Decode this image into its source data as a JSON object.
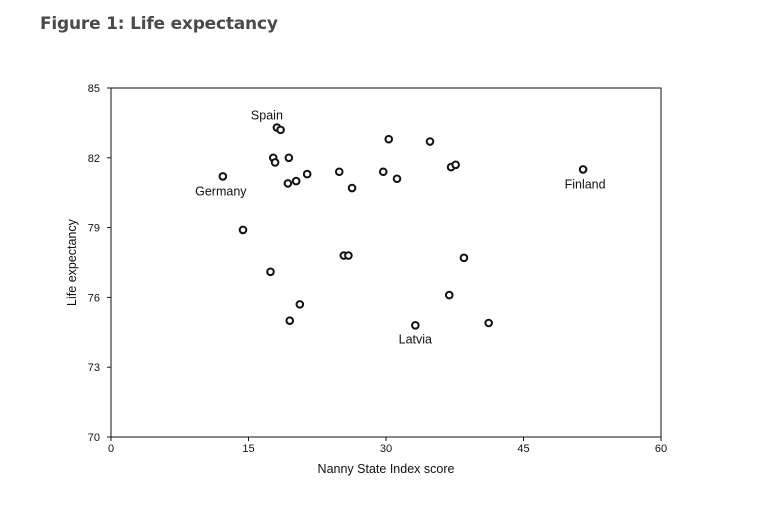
{
  "figure_title": "Figure 1: Life expectancy",
  "chart_data": {
    "type": "scatter",
    "title": "Figure 1: Life expectancy",
    "xlabel": "Nanny State Index score",
    "ylabel": "Life expectancy",
    "xlim": [
      0,
      60
    ],
    "ylim": [
      70,
      85
    ],
    "xticks": [
      0,
      15,
      30,
      45,
      60
    ],
    "yticks": [
      70,
      73,
      76,
      79,
      82,
      85
    ],
    "grid": false,
    "marker": "hollow-circle",
    "points": [
      {
        "x": 12.2,
        "y": 81.2,
        "label": "Germany"
      },
      {
        "x": 14.4,
        "y": 78.9
      },
      {
        "x": 17.4,
        "y": 77.1
      },
      {
        "x": 17.7,
        "y": 82.0
      },
      {
        "x": 17.9,
        "y": 81.8
      },
      {
        "x": 18.1,
        "y": 83.3,
        "label": "Spain"
      },
      {
        "x": 18.5,
        "y": 83.2
      },
      {
        "x": 19.3,
        "y": 80.9
      },
      {
        "x": 19.4,
        "y": 82.0
      },
      {
        "x": 19.5,
        "y": 75.0
      },
      {
        "x": 20.2,
        "y": 81.0
      },
      {
        "x": 20.6,
        "y": 75.7
      },
      {
        "x": 21.4,
        "y": 81.3
      },
      {
        "x": 24.9,
        "y": 81.4
      },
      {
        "x": 25.4,
        "y": 77.8
      },
      {
        "x": 25.9,
        "y": 77.8
      },
      {
        "x": 26.3,
        "y": 80.7
      },
      {
        "x": 29.7,
        "y": 81.4
      },
      {
        "x": 30.3,
        "y": 82.8
      },
      {
        "x": 31.2,
        "y": 81.1
      },
      {
        "x": 33.2,
        "y": 74.8,
        "label": "Latvia"
      },
      {
        "x": 34.8,
        "y": 82.7
      },
      {
        "x": 36.9,
        "y": 76.1
      },
      {
        "x": 37.1,
        "y": 81.6
      },
      {
        "x": 37.6,
        "y": 81.7
      },
      {
        "x": 38.5,
        "y": 77.7
      },
      {
        "x": 41.2,
        "y": 74.9
      },
      {
        "x": 51.5,
        "y": 81.5,
        "label": "Finland"
      }
    ]
  }
}
